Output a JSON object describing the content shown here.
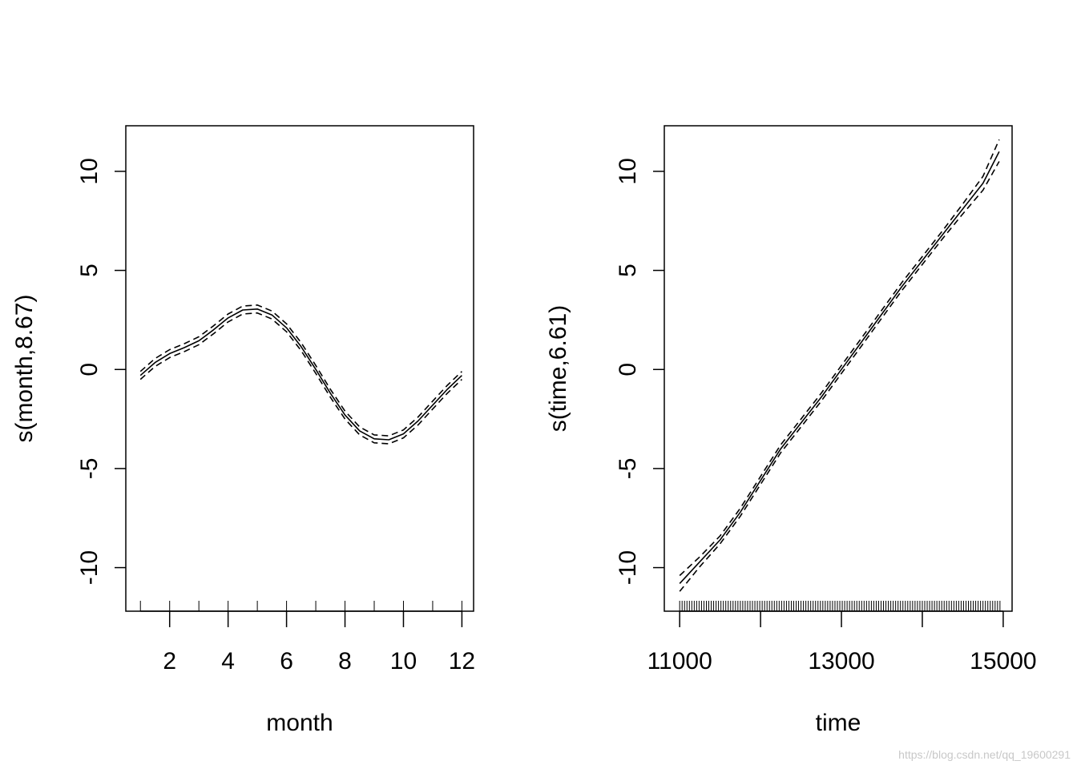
{
  "watermark": "https://blog.csdn.net/qq_19600291",
  "chart_data": [
    {
      "type": "line",
      "xlabel": "month",
      "ylabel": "s(month,8.67)",
      "xlim": [
        0.5,
        12.4
      ],
      "ylim": [
        -12.2,
        12.3
      ],
      "xticks": [
        2,
        4,
        6,
        8,
        10,
        12
      ],
      "yticks": [
        -10,
        -5,
        0,
        5,
        10
      ],
      "rug": [
        1,
        2,
        3,
        4,
        5,
        6,
        7,
        8,
        9,
        10,
        11,
        12
      ],
      "series": [
        {
          "name": "fit",
          "style": "solid",
          "x": [
            1,
            1.5,
            2,
            2.5,
            3,
            3.5,
            4,
            4.5,
            5,
            5.5,
            6,
            6.5,
            7,
            7.5,
            8,
            8.5,
            9,
            9.5,
            10,
            10.5,
            11,
            11.5,
            12
          ],
          "y": [
            -0.3,
            0.35,
            0.8,
            1.1,
            1.45,
            2.0,
            2.6,
            3.0,
            3.05,
            2.75,
            2.1,
            1.15,
            0.0,
            -1.2,
            -2.3,
            -3.1,
            -3.5,
            -3.55,
            -3.25,
            -2.6,
            -1.8,
            -1.0,
            -0.3
          ]
        },
        {
          "name": "upper band",
          "style": "dashed",
          "x": [
            1,
            1.5,
            2,
            2.5,
            3,
            3.5,
            4,
            4.5,
            5,
            5.5,
            6,
            6.5,
            7,
            7.5,
            8,
            8.5,
            9,
            9.5,
            10,
            10.5,
            11,
            11.5,
            12
          ],
          "y": [
            -0.1,
            0.55,
            1.0,
            1.3,
            1.65,
            2.2,
            2.8,
            3.2,
            3.25,
            2.95,
            2.3,
            1.35,
            0.2,
            -1.0,
            -2.1,
            -2.9,
            -3.3,
            -3.35,
            -3.05,
            -2.4,
            -1.6,
            -0.8,
            -0.1
          ]
        },
        {
          "name": "lower band",
          "style": "dashed",
          "x": [
            1,
            1.5,
            2,
            2.5,
            3,
            3.5,
            4,
            4.5,
            5,
            5.5,
            6,
            6.5,
            7,
            7.5,
            8,
            8.5,
            9,
            9.5,
            10,
            10.5,
            11,
            11.5,
            12
          ],
          "y": [
            -0.5,
            0.15,
            0.6,
            0.9,
            1.25,
            1.8,
            2.4,
            2.8,
            2.85,
            2.55,
            1.9,
            0.95,
            -0.2,
            -1.4,
            -2.5,
            -3.3,
            -3.7,
            -3.75,
            -3.45,
            -2.8,
            -2.0,
            -1.2,
            -0.5
          ]
        }
      ]
    },
    {
      "type": "line",
      "xlabel": "time",
      "ylabel": "s(time,6.61)",
      "xlim": [
        10810,
        15110
      ],
      "ylim": [
        -12.2,
        12.3
      ],
      "xticks": [
        11000,
        13000,
        15000
      ],
      "minor_xticks": [
        12000,
        14000
      ],
      "yticks": [
        -10,
        -5,
        0,
        5,
        10
      ],
      "rug": {
        "start": 11000,
        "end": 14970,
        "step": 30
      },
      "series": [
        {
          "name": "fit",
          "style": "solid",
          "x": [
            11000,
            11250,
            11500,
            11750,
            12000,
            12250,
            12500,
            12750,
            13000,
            13250,
            13500,
            13750,
            14000,
            14250,
            14500,
            14750,
            14950
          ],
          "y": [
            -10.8,
            -9.7,
            -8.6,
            -7.2,
            -5.6,
            -4.0,
            -2.7,
            -1.4,
            0.0,
            1.4,
            2.8,
            4.2,
            5.5,
            6.8,
            8.1,
            9.4,
            11.0
          ]
        },
        {
          "name": "upper band",
          "style": "dashed",
          "x": [
            11000,
            11250,
            11500,
            11750,
            12000,
            12250,
            12500,
            12750,
            13000,
            13250,
            13500,
            13750,
            14000,
            14250,
            14500,
            14750,
            14950
          ],
          "y": [
            -10.4,
            -9.45,
            -8.4,
            -7.0,
            -5.4,
            -3.8,
            -2.5,
            -1.2,
            0.2,
            1.6,
            3.0,
            4.4,
            5.7,
            7.0,
            8.35,
            9.75,
            11.6
          ]
        },
        {
          "name": "lower band",
          "style": "dashed",
          "x": [
            11000,
            11250,
            11500,
            11750,
            12000,
            12250,
            12500,
            12750,
            13000,
            13250,
            13500,
            13750,
            14000,
            14250,
            14500,
            14750,
            14950
          ],
          "y": [
            -11.2,
            -9.95,
            -8.8,
            -7.4,
            -5.8,
            -4.2,
            -2.9,
            -1.6,
            -0.2,
            1.2,
            2.6,
            4.0,
            5.3,
            6.6,
            7.85,
            9.05,
            10.5
          ]
        }
      ]
    }
  ]
}
